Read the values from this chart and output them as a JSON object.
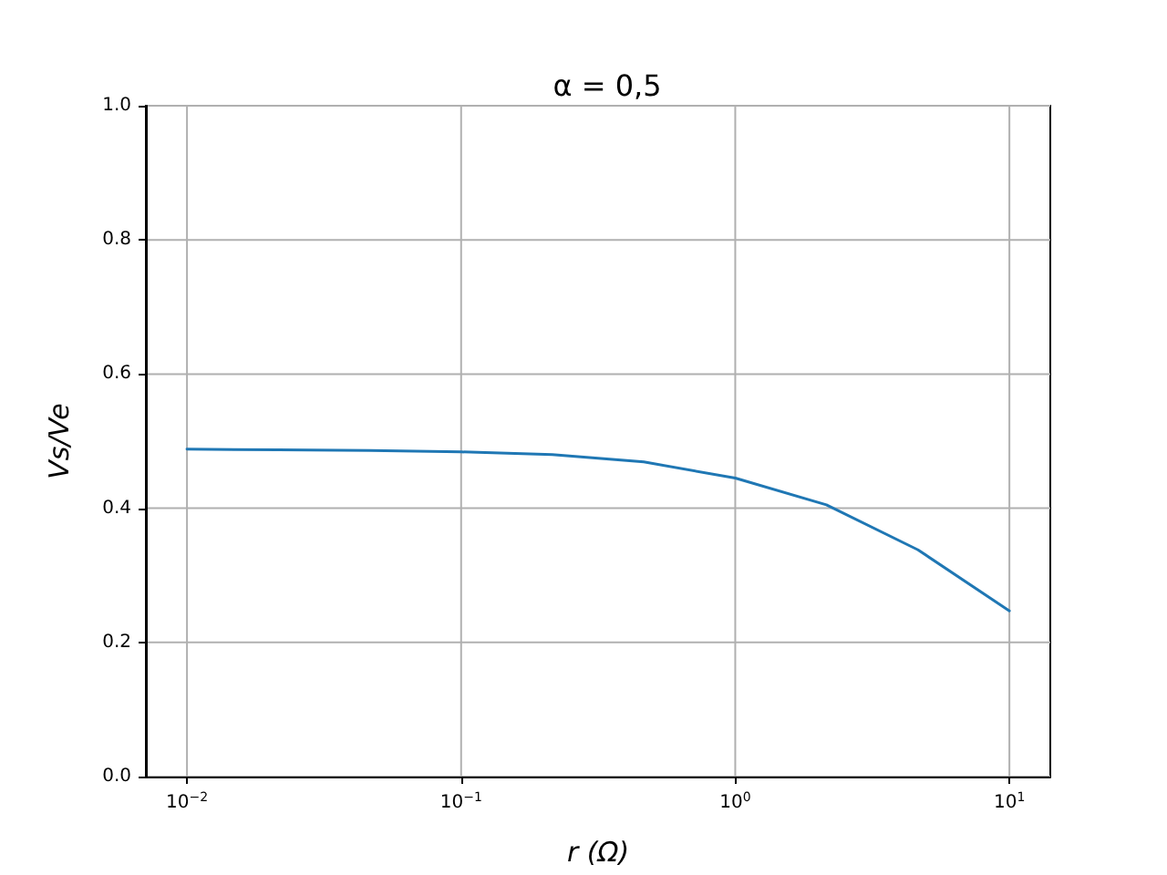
{
  "chart_data": {
    "type": "line",
    "title": "α = 0,5",
    "xlabel": "r (Ω)",
    "ylabel": "Vs/Ve",
    "x": [
      0.01,
      0.0215,
      0.0464,
      0.1,
      0.215,
      0.464,
      1,
      2.15,
      4.64,
      10
    ],
    "series": [
      {
        "color": "#1f77b4",
        "values": [
          0.488,
          0.487,
          0.486,
          0.484,
          0.48,
          0.469,
          0.445,
          0.405,
          0.338,
          0.247
        ]
      }
    ],
    "log": "x",
    "xlim": [
      0.00708,
      14.1
    ],
    "xticks": [
      {
        "value": 0.01,
        "label": "10$^{−2}$"
      },
      {
        "value": 0.1,
        "label": "10$^{−1}$"
      },
      {
        "value": 1,
        "label": "10$^{0}$"
      },
      {
        "value": 10,
        "label": "10$^{1}$"
      }
    ],
    "ylim": [
      0,
      1
    ],
    "yticks": [
      {
        "value": 0,
        "label": "0.0"
      },
      {
        "value": 0.2,
        "label": "0.2"
      },
      {
        "value": 0.4,
        "label": "0.4"
      },
      {
        "value": 0.6,
        "label": "0.6"
      },
      {
        "value": 0.8,
        "label": "0.8"
      },
      {
        "value": 1,
        "label": "1.0"
      }
    ],
    "grid": true,
    "marker": "none",
    "line_style": "solid"
  }
}
